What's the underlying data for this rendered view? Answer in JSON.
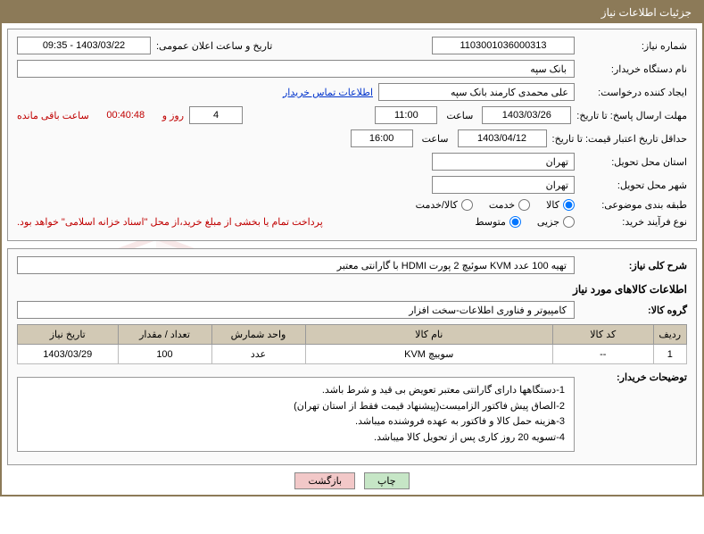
{
  "colors": {
    "header_bg": "#8c7a58",
    "table_header_bg": "#d2c9b5",
    "red_text": "#c00000",
    "link_text": "#0033cc",
    "btn_print_bg": "#c6e6c6",
    "btn_back_bg": "#f2c8c8"
  },
  "header": {
    "title": "جزئیات اطلاعات نیاز"
  },
  "info": {
    "need_no_label": "شماره نیاز:",
    "need_no": "1103001036000313",
    "announce_label": "تاریخ و ساعت اعلان عمومی:",
    "announce_value": "1403/03/22 - 09:35",
    "buyer_org_label": "نام دستگاه خریدار:",
    "buyer_org": "بانک سپه",
    "requester_label": "ایجاد کننده درخواست:",
    "requester": "علی محمدی کارمند بانک سپه",
    "contact_link": "اطلاعات تماس خریدار",
    "deadline_label": "مهلت ارسال پاسخ: تا تاریخ:",
    "deadline_date": "1403/03/26",
    "time_lbl": "ساعت",
    "deadline_time": "11:00",
    "days_value": "4",
    "days_suffix": "روز و",
    "countdown_time": "00:40:48",
    "remaining_suffix": "ساعت باقی مانده",
    "validity_label": "حداقل تاریخ اعتبار قیمت: تا تاریخ:",
    "validity_date": "1403/04/12",
    "validity_time": "16:00",
    "province_label": "استان محل تحویل:",
    "province": "تهران",
    "city_label": "شهر محل تحویل:",
    "city": "تهران",
    "category_label": "طبقه بندی موضوعی:",
    "radios": {
      "goods": "کالا",
      "service": "خدمت",
      "both": "کالا/خدمت",
      "selected": "goods"
    },
    "purchase_type_label": "نوع فرآیند خرید:",
    "purchase_radios": {
      "small": "جزیی",
      "medium": "متوسط",
      "selected": "medium"
    },
    "treasury_note": "پرداخت تمام یا بخشی از مبلغ خرید،از محل \"اسناد خزانه اسلامی\" خواهد بود."
  },
  "desc": {
    "title_label": "شرح کلی نیاز:",
    "title_value": "تهیه 100 عدد KVM سوئیچ 2 پورت HDMI با گارانتی معتبر"
  },
  "items_section": {
    "heading": "اطلاعات کالاهای مورد نیاز",
    "group_label": "گروه کالا:",
    "group_value": "کامپیوتر و فناوری اطلاعات-سخت افزار",
    "columns": [
      "ردیف",
      "کد کالا",
      "نام کالا",
      "واحد شمارش",
      "تعداد / مقدار",
      "تاریخ نیاز"
    ],
    "rows": [
      {
        "idx": "1",
        "code": "--",
        "name": "سوییچ KVM",
        "unit": "عدد",
        "qty": "100",
        "need_date": "1403/03/29"
      }
    ],
    "col_widths": [
      "5%",
      "15%",
      "37%",
      "14%",
      "14%",
      "15%"
    ]
  },
  "notes": {
    "label": "توضیحات خریدار:",
    "lines": [
      "1-دستگاهها دارای گارانتی معتبر تعویض بی قید و شرط باشد.",
      "2-الصاق پیش فاکتور الزامیست(پیشنهاد قیمت فقط از استان تهران)",
      "3-هزینه حمل کالا و فاکتور به عهده فروشنده میباشد.",
      "4-تسویه 20 روز کاری پس از تحویل کالا میباشد."
    ]
  },
  "buttons": {
    "print": "چاپ",
    "back": "بازگشت"
  },
  "watermark_text": "AriaTender.net"
}
